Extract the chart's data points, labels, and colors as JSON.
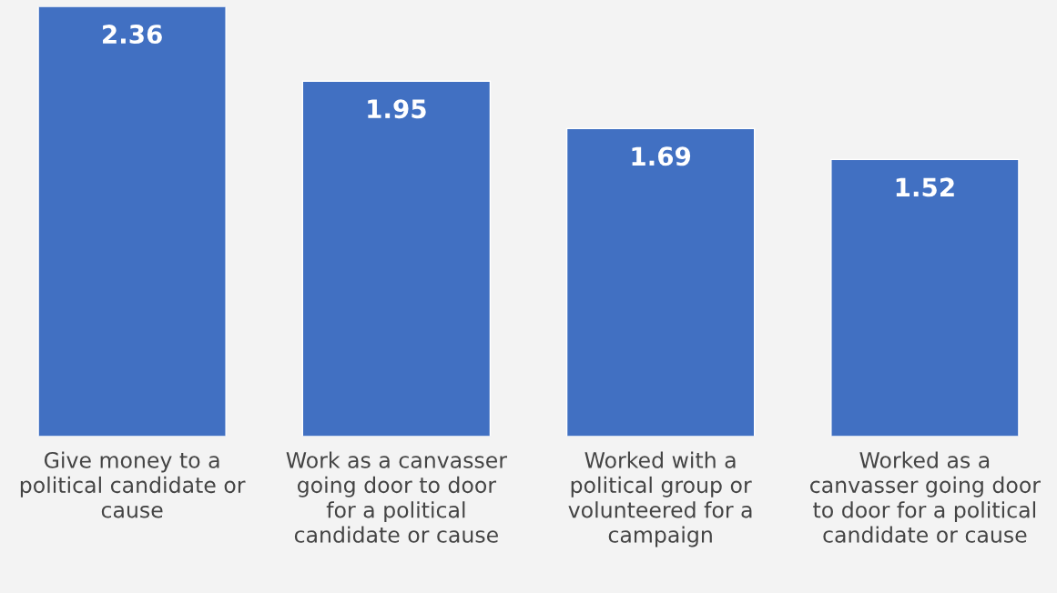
{
  "chart_data": {
    "type": "bar",
    "categories": [
      "Give money to a\npolitical candidate or\ncause",
      "Work as a canvasser\ngoing door to door\nfor a political\ncandidate or cause",
      "Worked with a\npolitical group or\nvolunteered for a\ncampaign",
      "Worked as a\ncanvasser going door\nto door for a political\ncandidate or cause"
    ],
    "values": [
      2.36,
      1.95,
      1.69,
      1.52
    ],
    "color": "#4170c2",
    "data_labels": true,
    "grid": false,
    "legend": false
  }
}
